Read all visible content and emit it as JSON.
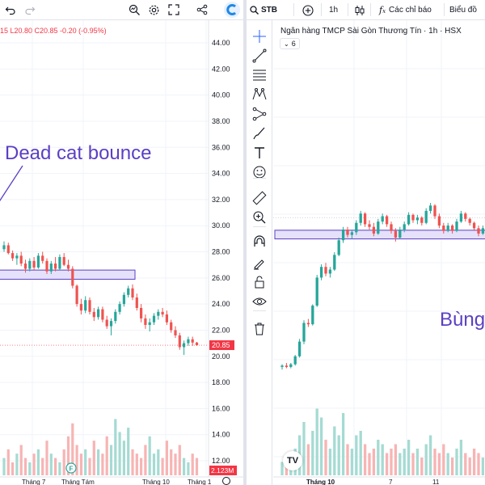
{
  "colors": {
    "up": "#26a69a",
    "down": "#ef5350",
    "up_volume": "#a5dbd3",
    "down_volume": "#f7b4b4",
    "zone_fill": "#e6e1fb",
    "zone_stroke": "#5b3fc4",
    "annotation": "#5b3fc4",
    "price_tag": "#f23645",
    "crosshair_icon": "#2962ff"
  },
  "left": {
    "toolbar_icons": [
      "undo-icon",
      "redo-icon",
      "indicator-search-icon",
      "settings-icon",
      "fullscreen-icon",
      "share-icon",
      "logo-icon"
    ],
    "ohlc_text": "15  L20.80  C20.85  -0.20  (-0.95%)",
    "annotation": "Dead cat bounce",
    "current_price": "20.85",
    "volume_value": "2.123M",
    "price_axis": [
      "44.00",
      "42.00",
      "40.00",
      "38.00",
      "36.00",
      "34.00",
      "32.00",
      "30.00",
      "28.00",
      "26.00",
      "24.00",
      "22.00",
      "20.00",
      "18.00",
      "16.00",
      "14.00",
      "12.00"
    ],
    "time_axis": [
      "Tháng 7",
      "Tháng Tám",
      "Tháng 10",
      "Tháng 1"
    ],
    "earnings_marker": "F",
    "chart_data": {
      "type": "candlestick",
      "y_range": [
        11,
        45
      ],
      "zone": [
        25.9,
        26.6
      ],
      "candles": [
        [
          28.2,
          28.8,
          28.0,
          28.5
        ],
        [
          28.5,
          28.7,
          27.8,
          27.9
        ],
        [
          27.9,
          28.1,
          27.3,
          27.5
        ],
        [
          27.5,
          27.9,
          27.0,
          27.7
        ],
        [
          27.7,
          28.0,
          26.9,
          27.1
        ],
        [
          27.1,
          27.4,
          26.4,
          26.7
        ],
        [
          26.7,
          27.5,
          26.5,
          27.3
        ],
        [
          27.3,
          27.6,
          26.6,
          26.8
        ],
        [
          26.8,
          27.9,
          26.7,
          27.7
        ],
        [
          27.7,
          28.0,
          27.1,
          27.3
        ],
        [
          27.3,
          27.5,
          26.3,
          26.5
        ],
        [
          26.5,
          27.3,
          26.3,
          27.1
        ],
        [
          27.1,
          27.6,
          26.5,
          26.7
        ],
        [
          26.7,
          27.8,
          26.6,
          27.6
        ],
        [
          27.6,
          27.9,
          26.9,
          27.0
        ],
        [
          27.0,
          27.4,
          26.5,
          26.7
        ],
        [
          26.7,
          26.9,
          25.2,
          25.4
        ],
        [
          25.4,
          25.5,
          23.8,
          24.0
        ],
        [
          24.0,
          24.4,
          23.2,
          23.5
        ],
        [
          23.5,
          24.6,
          23.3,
          24.3
        ],
        [
          24.3,
          24.5,
          23.2,
          23.4
        ],
        [
          23.4,
          23.7,
          22.7,
          23.0
        ],
        [
          23.0,
          23.8,
          22.8,
          23.6
        ],
        [
          23.6,
          23.8,
          22.6,
          22.8
        ],
        [
          22.8,
          23.1,
          22.1,
          22.3
        ],
        [
          22.3,
          22.9,
          21.6,
          22.7
        ],
        [
          22.7,
          23.6,
          22.5,
          23.4
        ],
        [
          23.4,
          24.2,
          23.2,
          24.0
        ],
        [
          24.0,
          24.9,
          23.8,
          24.7
        ],
        [
          24.7,
          25.4,
          24.5,
          25.2
        ],
        [
          25.2,
          25.5,
          24.3,
          24.5
        ],
        [
          24.5,
          24.8,
          23.5,
          23.7
        ],
        [
          23.7,
          24.0,
          22.6,
          22.9
        ],
        [
          22.9,
          23.2,
          22.1,
          22.4
        ],
        [
          22.4,
          22.9,
          21.9,
          22.6
        ],
        [
          22.6,
          23.3,
          22.4,
          23.1
        ],
        [
          23.1,
          23.6,
          22.8,
          23.4
        ],
        [
          23.4,
          23.7,
          23.0,
          23.2
        ],
        [
          23.2,
          23.5,
          22.4,
          22.6
        ],
        [
          22.6,
          22.8,
          21.8,
          22.0
        ],
        [
          22.0,
          22.3,
          21.4,
          21.6
        ],
        [
          21.6,
          21.8,
          20.5,
          20.7
        ],
        [
          20.7,
          21.2,
          20.1,
          21.0
        ],
        [
          21.0,
          21.5,
          20.8,
          21.3
        ],
        [
          21.3,
          21.5,
          20.8,
          21.05
        ],
        [
          21.05,
          21.1,
          20.8,
          20.85
        ]
      ],
      "volume": [
        4,
        6,
        3,
        5,
        7,
        4,
        3,
        5,
        6,
        4,
        8,
        5,
        4,
        3,
        6,
        9,
        12,
        7,
        5,
        6,
        4,
        8,
        6,
        5,
        9,
        7,
        13,
        10,
        8,
        11,
        6,
        5,
        4,
        7,
        9,
        5,
        6,
        4,
        8,
        6,
        5,
        7,
        4,
        3,
        5,
        4
      ],
      "volume_max": 14
    }
  },
  "right": {
    "symbol": "STB",
    "timeframe": "1h",
    "indicators_label": "Các chỉ báo",
    "chart_menu_label": "Biểu đồ",
    "title": "Ngân hàng TMCP Sài Gòn Thương Tín · 1h · HSX",
    "indicator_count": "6",
    "annotation": "Bùng",
    "time_axis": [
      "Tháng 10",
      "7",
      "11"
    ],
    "tv_logo": "TV",
    "drawing_tools": [
      "crosshair-icon",
      "trend-line-icon",
      "fib-icon",
      "pattern-icon",
      "measure-path-icon",
      "brush-icon",
      "text-icon",
      "emoji-icon",
      "ruler-icon",
      "zoom-in-icon",
      "magnet-icon",
      "lock-draw-icon",
      "lock-icon",
      "eye-icon",
      "trash-icon"
    ],
    "chart_data": {
      "type": "candlestick",
      "y_range": [
        13,
        33
      ],
      "zone": [
        28.3,
        28.95
      ],
      "candles": [
        [
          18.7,
          18.9,
          18.5,
          18.8
        ],
        [
          18.8,
          19.0,
          18.6,
          18.7
        ],
        [
          18.7,
          19.0,
          18.6,
          18.9
        ],
        [
          18.9,
          19.6,
          18.8,
          19.5
        ],
        [
          19.5,
          20.8,
          19.4,
          20.6
        ],
        [
          20.6,
          22.2,
          20.4,
          22.0
        ],
        [
          22.0,
          22.3,
          21.7,
          21.9
        ],
        [
          21.9,
          23.4,
          21.8,
          23.3
        ],
        [
          23.3,
          25.6,
          23.2,
          25.4
        ],
        [
          25.4,
          26.4,
          25.2,
          26.2
        ],
        [
          26.2,
          26.5,
          25.5,
          25.7
        ],
        [
          25.7,
          26.2,
          25.4,
          26.0
        ],
        [
          26.0,
          27.3,
          25.9,
          27.1
        ],
        [
          27.1,
          28.4,
          27.0,
          28.2
        ],
        [
          28.2,
          29.2,
          28.0,
          29.0
        ],
        [
          29.0,
          29.2,
          28.4,
          28.6
        ],
        [
          28.6,
          29.0,
          28.3,
          28.8
        ],
        [
          28.8,
          29.7,
          28.6,
          29.5
        ],
        [
          29.5,
          30.4,
          29.3,
          30.2
        ],
        [
          30.2,
          30.3,
          29.2,
          29.4
        ],
        [
          29.4,
          29.7,
          29.0,
          29.2
        ],
        [
          29.2,
          29.5,
          28.5,
          28.7
        ],
        [
          28.7,
          29.8,
          28.6,
          29.6
        ],
        [
          29.6,
          30.2,
          29.4,
          30.0
        ],
        [
          30.0,
          30.1,
          29.2,
          29.4
        ],
        [
          29.4,
          29.6,
          28.7,
          28.9
        ],
        [
          28.9,
          29.1,
          28.1,
          28.4
        ],
        [
          28.4,
          29.2,
          28.3,
          29.0
        ],
        [
          29.0,
          29.6,
          28.8,
          29.4
        ],
        [
          29.4,
          30.3,
          29.3,
          30.1
        ],
        [
          30.1,
          30.2,
          29.5,
          29.7
        ],
        [
          29.7,
          30.1,
          29.4,
          29.9
        ],
        [
          29.9,
          30.0,
          29.3,
          29.5
        ],
        [
          29.5,
          30.6,
          29.4,
          30.4
        ],
        [
          30.4,
          31.0,
          30.2,
          30.8
        ],
        [
          30.8,
          30.9,
          29.8,
          30.0
        ],
        [
          30.0,
          30.2,
          29.1,
          29.3
        ],
        [
          29.3,
          29.5,
          28.7,
          28.9
        ],
        [
          28.9,
          29.5,
          28.8,
          29.3
        ],
        [
          29.3,
          29.4,
          28.7,
          28.9
        ],
        [
          28.9,
          29.8,
          28.8,
          29.6
        ],
        [
          29.6,
          30.4,
          29.5,
          30.2
        ],
        [
          30.2,
          30.3,
          29.6,
          29.8
        ],
        [
          29.8,
          29.9,
          29.3,
          29.5
        ],
        [
          29.5,
          29.6,
          28.9,
          29.1
        ],
        [
          29.1,
          29.3,
          28.5,
          28.7
        ],
        [
          28.7,
          29.3,
          28.6,
          29.1
        ],
        [
          29.1,
          29.7,
          29.0,
          29.5
        ],
        [
          29.5,
          29.8,
          29.2,
          29.4
        ]
      ],
      "volume": [
        3,
        4,
        3,
        6,
        9,
        12,
        7,
        10,
        15,
        13,
        8,
        6,
        11,
        9,
        14,
        7,
        6,
        9,
        10,
        7,
        5,
        6,
        8,
        7,
        5,
        6,
        7,
        5,
        6,
        8,
        5,
        6,
        4,
        7,
        9,
        6,
        5,
        7,
        5,
        4,
        6,
        8,
        5,
        4,
        6,
        5,
        4,
        6,
        5
      ],
      "volume_max": 16
    }
  }
}
